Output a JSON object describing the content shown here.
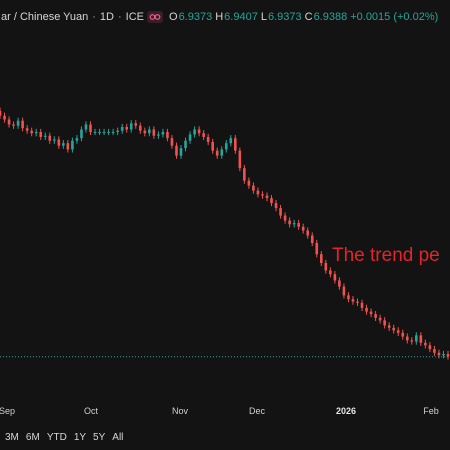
{
  "header": {
    "title": "ar / Chinese Yuan",
    "interval": "1D",
    "exchange": "ICE",
    "separator": "·",
    "ohlc": [
      {
        "key": "O",
        "value": "6.9373"
      },
      {
        "key": "H",
        "value": "6.9407"
      },
      {
        "key": "L",
        "value": "6.9373"
      },
      {
        "key": "C",
        "value": "6.9388"
      }
    ],
    "change": "+0.0015 (+0.02%)",
    "up_color": "#26a69a",
    "down_color": "#ef5350",
    "market_icon": "market-status-icon"
  },
  "time_axis": [
    {
      "label": "Sep",
      "bold": false
    },
    {
      "label": "Oct",
      "bold": false
    },
    {
      "label": "Nov",
      "bold": false
    },
    {
      "label": "Dec",
      "bold": false
    },
    {
      "label": "2026",
      "bold": true
    },
    {
      "label": "Feb",
      "bold": false
    }
  ],
  "range_buttons": [
    "3M",
    "6M",
    "YTD",
    "1Y",
    "5Y",
    "All"
  ],
  "annotation": {
    "text": "The trend pe",
    "color": "#e0262a"
  },
  "chart_data": {
    "type": "candlestick",
    "x_labels": [
      "Sep",
      "Oct",
      "Nov",
      "Dec",
      "2026",
      "Feb"
    ],
    "series_closes": [
      7.132,
      7.129,
      7.125,
      7.124,
      7.128,
      7.122,
      7.12,
      7.118,
      7.119,
      7.115,
      7.116,
      7.112,
      7.113,
      7.108,
      7.11,
      7.105,
      7.112,
      7.114,
      7.121,
      7.125,
      7.119,
      7.119,
      7.119,
      7.119,
      7.119,
      7.119,
      7.12,
      7.123,
      7.121,
      7.126,
      7.124,
      7.12,
      7.118,
      7.121,
      7.116,
      7.117,
      7.119,
      7.114,
      7.108,
      7.1,
      7.106,
      7.112,
      7.117,
      7.121,
      7.118,
      7.115,
      7.111,
      7.104,
      7.1,
      7.105,
      7.11,
      7.114,
      7.104,
      7.09,
      7.08,
      7.076,
      7.072,
      7.069,
      7.068,
      7.066,
      7.062,
      7.058,
      7.052,
      7.048,
      7.045,
      7.046,
      7.043,
      7.04,
      7.036,
      7.03,
      7.021,
      7.014,
      7.008,
      7.005,
      7.0,
      6.995,
      6.988,
      6.985,
      6.983,
      6.982,
      6.978,
      6.975,
      6.973,
      6.97,
      6.968,
      6.964,
      6.962,
      6.96,
      6.958,
      6.955,
      6.952,
      6.951,
      6.956,
      6.95,
      6.948,
      6.945,
      6.942,
      6.94,
      6.941,
      6.939
    ],
    "last_price_line": 6.9388,
    "grid": false
  }
}
